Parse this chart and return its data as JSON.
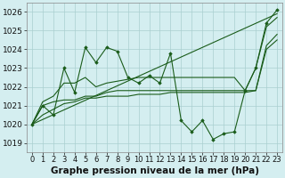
{
  "title": "Graphe pression niveau de la mer (hPa)",
  "background_color": "#d4eef0",
  "grid_color": "#aacfcf",
  "line_color": "#1a5c1a",
  "marker_color": "#1a5c1a",
  "xlim": [
    -0.5,
    23.5
  ],
  "ylim": [
    1018.5,
    1026.5
  ],
  "yticks": [
    1019,
    1020,
    1021,
    1022,
    1023,
    1024,
    1025,
    1026
  ],
  "xticks": [
    0,
    1,
    2,
    3,
    4,
    5,
    6,
    7,
    8,
    9,
    10,
    11,
    12,
    13,
    14,
    15,
    16,
    17,
    18,
    19,
    20,
    21,
    22,
    23
  ],
  "series_volatile": [
    1020.0,
    1021.0,
    1020.5,
    1023.0,
    1021.7,
    1024.1,
    1023.3,
    1024.1,
    1023.9,
    1022.5,
    1022.2,
    1022.6,
    1022.2,
    1023.8,
    1020.2,
    1019.6,
    1020.2,
    1019.2,
    1019.5,
    1019.6,
    1021.8,
    1023.0,
    1025.4,
    1026.1
  ],
  "series_upper_line": [
    1020.0,
    1025.9
  ],
  "series_upper_line_x": [
    0,
    23
  ],
  "series_mid_upper": [
    1020.0,
    1021.2,
    1021.5,
    1022.2,
    1022.2,
    1022.5,
    1022.0,
    1022.2,
    1022.3,
    1022.4,
    1022.5,
    1022.5,
    1022.5,
    1022.5,
    1022.5,
    1022.5,
    1022.5,
    1022.5,
    1022.5,
    1022.5,
    1021.8,
    1023.0,
    1025.2,
    1025.7
  ],
  "series_lower_flat": [
    1020.0,
    1021.0,
    1021.2,
    1021.3,
    1021.3,
    1021.5,
    1021.5,
    1021.7,
    1021.8,
    1021.8,
    1021.8,
    1021.8,
    1021.8,
    1021.8,
    1021.8,
    1021.8,
    1021.8,
    1021.8,
    1021.8,
    1021.8,
    1021.8,
    1021.8,
    1024.0,
    1024.5
  ],
  "series_bottom": [
    1020.0,
    1020.5,
    1020.8,
    1021.1,
    1021.2,
    1021.4,
    1021.4,
    1021.5,
    1021.5,
    1021.5,
    1021.6,
    1021.6,
    1021.6,
    1021.7,
    1021.7,
    1021.7,
    1021.7,
    1021.7,
    1021.7,
    1021.7,
    1021.7,
    1021.8,
    1024.2,
    1024.8
  ],
  "xlabel_fontsize": 7.5,
  "ylabel_fontsize": 6.5,
  "tick_fontsize": 6.0
}
